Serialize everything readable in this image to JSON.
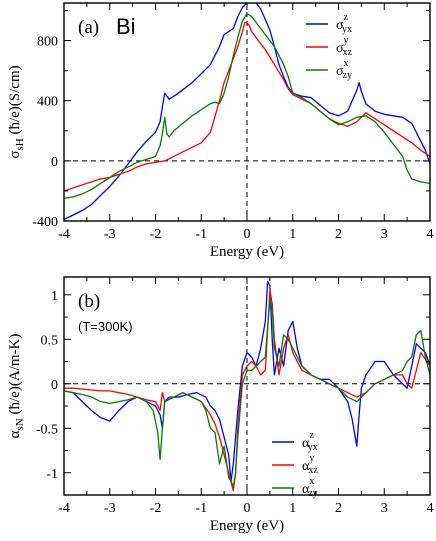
{
  "chart_data": [
    {
      "type": "line",
      "panel_label": "(a)",
      "element_label": "Bi",
      "xlabel": "Energy (eV)",
      "ylabel": "σsH (ħ/e)(S/cm)",
      "xlim": [
        -4,
        4
      ],
      "ylim": [
        -400,
        1050
      ],
      "xticks": [
        -4,
        -3,
        -2,
        -1,
        0,
        1,
        2,
        3,
        4
      ],
      "yticks": [
        -400,
        0,
        400,
        800
      ],
      "dashed_zero_line": true,
      "dashed_fermi_line": 0,
      "legend_position": "top-right",
      "series": [
        {
          "name": "σyx z",
          "legend_base": "σ",
          "legend_sup": "z",
          "legend_sub": "yx",
          "color": "#0000ff",
          "x": [
            -4,
            -3.8,
            -3.6,
            -3.4,
            -3.2,
            -3.0,
            -2.8,
            -2.6,
            -2.4,
            -2.2,
            -2.0,
            -1.9,
            -1.85,
            -1.8,
            -1.7,
            -1.5,
            -1.2,
            -1.0,
            -0.8,
            -0.6,
            -0.5,
            -0.4,
            -0.3,
            -0.2,
            -0.1,
            0.0,
            0.05,
            0.1,
            0.2,
            0.3,
            0.4,
            0.5,
            0.6,
            0.7,
            0.8,
            0.9,
            1.0,
            1.2,
            1.4,
            1.6,
            1.8,
            2.0,
            2.2,
            2.3,
            2.4,
            2.45,
            2.5,
            2.6,
            2.8,
            3.0,
            3.2,
            3.4,
            3.5,
            3.6,
            3.7,
            3.8,
            3.9,
            4.0
          ],
          "y": [
            -390,
            -360,
            -330,
            -290,
            -230,
            -170,
            -100,
            -20,
            60,
            130,
            190,
            260,
            360,
            450,
            410,
            450,
            520,
            580,
            640,
            760,
            840,
            860,
            880,
            960,
            1020,
            1050,
            1050,
            1055,
            1050,
            1010,
            940,
            870,
            760,
            640,
            560,
            490,
            450,
            430,
            420,
            370,
            320,
            300,
            330,
            400,
            470,
            520,
            460,
            380,
            330,
            310,
            300,
            290,
            270,
            250,
            190,
            130,
            70,
            -20
          ]
        },
        {
          "name": "σxz y",
          "legend_base": "σ",
          "legend_sup": "y",
          "legend_sub": "xz",
          "color": "#ff0000",
          "x": [
            -4,
            -3.8,
            -3.6,
            -3.4,
            -3.2,
            -3.0,
            -2.8,
            -2.6,
            -2.4,
            -2.2,
            -2.0,
            -1.9,
            -1.8,
            -1.6,
            -1.4,
            -1.2,
            -1.0,
            -0.8,
            -0.6,
            -0.5,
            -0.4,
            -0.3,
            -0.2,
            -0.1,
            -0.05,
            0.0,
            0.05,
            0.1,
            0.2,
            0.3,
            0.4,
            0.5,
            0.6,
            0.7,
            0.8,
            0.9,
            1.0,
            1.2,
            1.4,
            1.6,
            1.8,
            2.0,
            2.2,
            2.4,
            2.6,
            2.8,
            3.0,
            3.2,
            3.4,
            3.6,
            3.8,
            4.0
          ],
          "y": [
            -200,
            -180,
            -160,
            -140,
            -120,
            -110,
            -90,
            -70,
            -40,
            -20,
            -10,
            -5,
            0,
            30,
            60,
            90,
            120,
            190,
            400,
            520,
            600,
            680,
            760,
            860,
            920,
            920,
            900,
            860,
            820,
            780,
            740,
            690,
            640,
            590,
            540,
            480,
            440,
            410,
            380,
            330,
            280,
            250,
            230,
            260,
            320,
            280,
            240,
            200,
            160,
            120,
            70,
            30
          ]
        },
        {
          "name": "σzy x",
          "legend_base": "σ",
          "legend_sup": "x",
          "legend_sub": "zy",
          "color": "#008000",
          "x": [
            -4,
            -3.8,
            -3.6,
            -3.4,
            -3.2,
            -3.0,
            -2.8,
            -2.6,
            -2.4,
            -2.2,
            -2.0,
            -1.9,
            -1.85,
            -1.8,
            -1.75,
            -1.7,
            -1.6,
            -1.4,
            -1.2,
            -1.0,
            -0.9,
            -0.8,
            -0.7,
            -0.6,
            -0.5,
            -0.4,
            -0.3,
            -0.2,
            -0.1,
            0.0,
            0.1,
            0.2,
            0.3,
            0.4,
            0.5,
            0.6,
            0.7,
            0.8,
            0.9,
            1.0,
            1.2,
            1.4,
            1.6,
            1.8,
            2.0,
            2.2,
            2.4,
            2.6,
            2.8,
            3.0,
            3.2,
            3.4,
            3.5,
            3.6,
            3.7,
            3.8,
            4.0
          ],
          "y": [
            -250,
            -240,
            -220,
            -190,
            -150,
            -110,
            -70,
            -40,
            -10,
            10,
            30,
            100,
            180,
            290,
            180,
            160,
            200,
            250,
            300,
            340,
            360,
            380,
            390,
            380,
            450,
            560,
            700,
            820,
            930,
            980,
            960,
            920,
            880,
            840,
            800,
            760,
            700,
            640,
            560,
            450,
            420,
            380,
            330,
            280,
            240,
            260,
            290,
            300,
            260,
            190,
            110,
            30,
            -60,
            -120,
            -130,
            -140,
            -150
          ]
        }
      ]
    },
    {
      "type": "line",
      "panel_label": "(b)",
      "annotation": "(T=300K)",
      "xlabel": "Energy (eV)",
      "ylabel": "αsN (ħ/e)(A/m-K)",
      "xlim": [
        -4,
        4
      ],
      "ylim": [
        -1.25,
        1.2
      ],
      "xticks": [
        -4,
        -3,
        -2,
        -1,
        0,
        1,
        2,
        3,
        4
      ],
      "yticks": [
        -1,
        -0.5,
        0,
        0.5,
        1
      ],
      "ytick_labels": [
        "-1",
        "-0.5",
        "0",
        "0.5",
        "1"
      ],
      "dashed_zero_line": true,
      "dashed_fermi_line": 0,
      "legend_position": "lower-right",
      "series": [
        {
          "name": "αyx z",
          "legend_base": "α",
          "legend_sup": "z",
          "legend_sub": "yx",
          "color": "#0000ff",
          "x": [
            -4,
            -3.8,
            -3.6,
            -3.4,
            -3.2,
            -3.0,
            -2.8,
            -2.6,
            -2.4,
            -2.2,
            -2.0,
            -1.9,
            -1.85,
            -1.8,
            -1.7,
            -1.5,
            -1.3,
            -1.1,
            -0.9,
            -0.8,
            -0.7,
            -0.6,
            -0.5,
            -0.4,
            -0.35,
            -0.3,
            -0.2,
            -0.1,
            0.0,
            0.1,
            0.2,
            0.3,
            0.4,
            0.45,
            0.5,
            0.55,
            0.6,
            0.7,
            0.8,
            0.9,
            1.0,
            1.1,
            1.2,
            1.4,
            1.6,
            1.8,
            2.0,
            2.2,
            2.3,
            2.4,
            2.45,
            2.5,
            2.6,
            2.8,
            3.0,
            3.2,
            3.4,
            3.5,
            3.6,
            3.7,
            3.8,
            3.9,
            4.0
          ],
          "y": [
            -0.08,
            -0.1,
            -0.2,
            -0.3,
            -0.38,
            -0.42,
            -0.3,
            -0.2,
            -0.15,
            -0.2,
            -0.25,
            -0.35,
            -0.5,
            -0.2,
            -0.15,
            -0.15,
            -0.12,
            -0.1,
            -0.15,
            -0.25,
            -0.3,
            -0.4,
            -0.6,
            -0.8,
            -1.1,
            -0.9,
            -0.3,
            0.2,
            0.35,
            0.3,
            0.2,
            0.4,
            0.7,
            1.15,
            1.1,
            0.5,
            0.1,
            0.4,
            0.2,
            0.6,
            0.7,
            0.4,
            0.2,
            0.1,
            0.05,
            0.05,
            -0.05,
            -0.2,
            -0.4,
            -0.7,
            -0.35,
            -0.05,
            0.1,
            0.25,
            0.25,
            0.1,
            0.0,
            -0.05,
            0.2,
            0.45,
            0.4,
            0.35,
            0.2
          ]
        },
        {
          "name": "αxz y",
          "legend_base": "α",
          "legend_sup": "y",
          "legend_sub": "xz",
          "color": "#ff0000",
          "x": [
            -4,
            -3.8,
            -3.6,
            -3.4,
            -3.2,
            -3.0,
            -2.8,
            -2.6,
            -2.4,
            -2.2,
            -2.0,
            -1.9,
            -1.85,
            -1.8,
            -1.6,
            -1.4,
            -1.2,
            -1.0,
            -0.8,
            -0.7,
            -0.6,
            -0.5,
            -0.4,
            -0.3,
            -0.25,
            -0.2,
            -0.1,
            0.0,
            0.1,
            0.2,
            0.3,
            0.4,
            0.5,
            0.55,
            0.6,
            0.7,
            0.8,
            0.9,
            1.0,
            1.2,
            1.4,
            1.6,
            1.8,
            2.0,
            2.2,
            2.4,
            2.6,
            2.8,
            3.0,
            3.2,
            3.4,
            3.5,
            3.6,
            3.7,
            3.8,
            4.0
          ],
          "y": [
            -0.05,
            -0.05,
            -0.06,
            -0.07,
            -0.08,
            -0.08,
            -0.1,
            -0.12,
            -0.15,
            -0.18,
            -0.2,
            -0.3,
            -0.1,
            -0.2,
            -0.15,
            -0.1,
            -0.15,
            -0.2,
            -0.35,
            -0.45,
            -0.6,
            -0.8,
            -1.0,
            -1.2,
            -1.0,
            -0.5,
            0.1,
            0.2,
            0.25,
            0.2,
            0.1,
            0.15,
            1.05,
            0.9,
            0.5,
            0.1,
            0.4,
            0.55,
            0.35,
            0.15,
            0.1,
            0.05,
            0.0,
            -0.05,
            -0.1,
            -0.15,
            -0.1,
            0.0,
            0.05,
            0.1,
            0.1,
            0.0,
            -0.05,
            0.15,
            0.35,
            0.2
          ]
        },
        {
          "name": "αzy x",
          "legend_base": "α",
          "legend_sup": "x",
          "legend_sub": "zy",
          "color": "#008000",
          "x": [
            -4,
            -3.8,
            -3.6,
            -3.4,
            -3.2,
            -3.0,
            -2.8,
            -2.6,
            -2.4,
            -2.2,
            -2.05,
            -1.95,
            -1.9,
            -1.85,
            -1.8,
            -1.6,
            -1.4,
            -1.2,
            -1.0,
            -0.9,
            -0.8,
            -0.7,
            -0.6,
            -0.5,
            -0.4,
            -0.3,
            -0.25,
            -0.2,
            -0.1,
            0.0,
            0.1,
            0.2,
            0.3,
            0.4,
            0.5,
            0.55,
            0.6,
            0.7,
            0.8,
            0.9,
            1.0,
            1.2,
            1.4,
            1.6,
            1.8,
            2.0,
            2.2,
            2.4,
            2.6,
            2.8,
            3.0,
            3.2,
            3.4,
            3.5,
            3.6,
            3.7,
            3.8,
            3.9,
            4.0
          ],
          "y": [
            -0.08,
            -0.1,
            -0.12,
            -0.15,
            -0.2,
            -0.22,
            -0.2,
            -0.18,
            -0.15,
            -0.2,
            -0.3,
            -0.55,
            -0.85,
            -0.5,
            -0.2,
            -0.15,
            -0.1,
            -0.15,
            -0.2,
            -0.3,
            -0.5,
            -0.55,
            -0.9,
            -0.7,
            -1.05,
            -1.15,
            -1.0,
            -0.6,
            0.0,
            0.15,
            0.15,
            0.2,
            0.25,
            0.3,
            0.95,
            0.85,
            0.4,
            0.2,
            0.55,
            0.5,
            0.4,
            0.2,
            0.1,
            0.05,
            0.0,
            -0.05,
            -0.15,
            -0.2,
            -0.1,
            0.0,
            0.05,
            0.1,
            0.15,
            0.25,
            0.3,
            0.55,
            0.6,
            0.3,
            0.1
          ]
        }
      ]
    }
  ]
}
